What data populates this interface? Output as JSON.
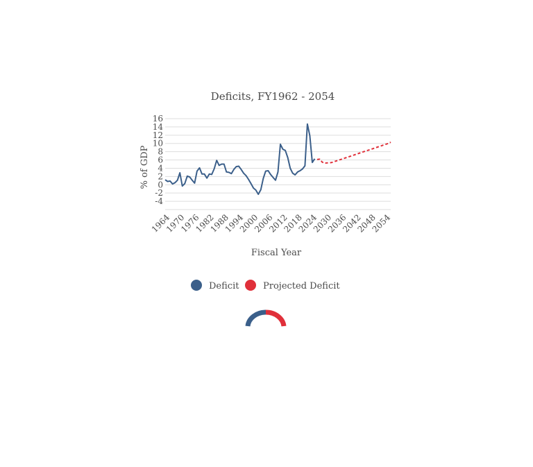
{
  "chart_data": {
    "type": "line",
    "title": "Deficits, FY1962 - 2054",
    "xlabel": "Fiscal Year",
    "ylabel": "% of GDP",
    "xlim": [
      1962,
      2054
    ],
    "ylim": [
      -6,
      16
    ],
    "y_ticks": [
      16,
      14,
      12,
      10,
      8,
      6,
      4,
      2,
      0,
      -2,
      -4
    ],
    "x_ticks": [
      1964,
      1970,
      1976,
      1982,
      1988,
      1994,
      2000,
      2006,
      2012,
      2018,
      2024,
      2030,
      2036,
      2042,
      2048,
      2054
    ],
    "grid": true,
    "legend_position": "bottom",
    "series": [
      {
        "name": "Deficit",
        "color": "#3b5f8a",
        "style": "solid",
        "x": [
          1962,
          1963,
          1964,
          1965,
          1966,
          1967,
          1968,
          1969,
          1970,
          1971,
          1972,
          1973,
          1974,
          1975,
          1976,
          1977,
          1978,
          1979,
          1980,
          1981,
          1982,
          1983,
          1984,
          1985,
          1986,
          1987,
          1988,
          1989,
          1990,
          1991,
          1992,
          1993,
          1994,
          1995,
          1996,
          1997,
          1998,
          1999,
          2000,
          2001,
          2002,
          2003,
          2004,
          2005,
          2006,
          2007,
          2008,
          2009,
          2010,
          2011,
          2012,
          2013,
          2014,
          2015,
          2016,
          2017,
          2018,
          2019,
          2020,
          2021,
          2022,
          2023
        ],
        "y": [
          1.2,
          0.8,
          0.9,
          0.2,
          0.5,
          1.1,
          2.9,
          -0.3,
          0.3,
          2.1,
          1.9,
          1.1,
          0.4,
          3.3,
          4.1,
          2.6,
          2.6,
          1.6,
          2.6,
          2.5,
          3.9,
          5.9,
          4.7,
          5.0,
          5.0,
          3.1,
          3.0,
          2.7,
          3.7,
          4.4,
          4.5,
          3.7,
          2.8,
          2.2,
          1.3,
          0.3,
          -0.8,
          -1.3,
          -2.3,
          -1.2,
          1.5,
          3.3,
          3.4,
          2.5,
          1.8,
          1.1,
          3.1,
          9.8,
          8.6,
          8.3,
          6.6,
          4.0,
          2.8,
          2.4,
          3.1,
          3.4,
          3.8,
          4.6,
          14.7,
          11.9,
          5.4,
          6.3
        ]
      },
      {
        "name": "Projected Deficit",
        "color": "#e0303a",
        "style": "dashed",
        "x": [
          2024,
          2025,
          2026,
          2027,
          2028,
          2029,
          2030,
          2031,
          2032,
          2033,
          2034,
          2035,
          2036,
          2037,
          2038,
          2039,
          2040,
          2041,
          2042,
          2043,
          2044,
          2045,
          2046,
          2047,
          2048,
          2049,
          2050,
          2051,
          2052,
          2053,
          2054
        ],
        "y": [
          6.1,
          6.2,
          5.5,
          5.2,
          5.3,
          5.3,
          5.4,
          5.6,
          5.8,
          6.0,
          6.2,
          6.4,
          6.6,
          6.8,
          7.0,
          7.2,
          7.4,
          7.6,
          7.8,
          8.0,
          8.2,
          8.4,
          8.6,
          8.8,
          9.0,
          9.2,
          9.4,
          9.6,
          9.8,
          10.0,
          10.3
        ]
      }
    ]
  },
  "legend": {
    "items": [
      {
        "label": "Deficit",
        "color": "#3b5f8a"
      },
      {
        "label": "Projected Deficit",
        "color": "#e0303a"
      }
    ]
  },
  "loader": {
    "colors": [
      "#3b5f8a",
      "#e0303a"
    ]
  }
}
